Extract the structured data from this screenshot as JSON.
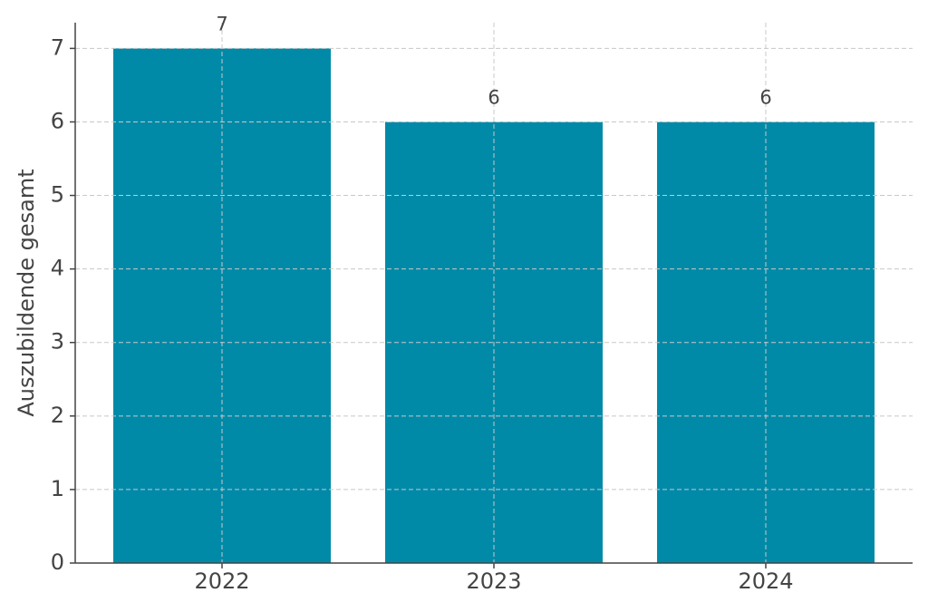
{
  "chart_data": {
    "type": "bar",
    "y_label": "Auszubildende gesamt",
    "categories": [
      "2022",
      "2023",
      "2024"
    ],
    "values": [
      7,
      6,
      6
    ],
    "color": "#008aa8",
    "ylim": [
      0,
      7.35
    ],
    "yticks": [
      0,
      1,
      2,
      3,
      4,
      5,
      6,
      7
    ],
    "grid": true,
    "value_labels_shown": true
  }
}
